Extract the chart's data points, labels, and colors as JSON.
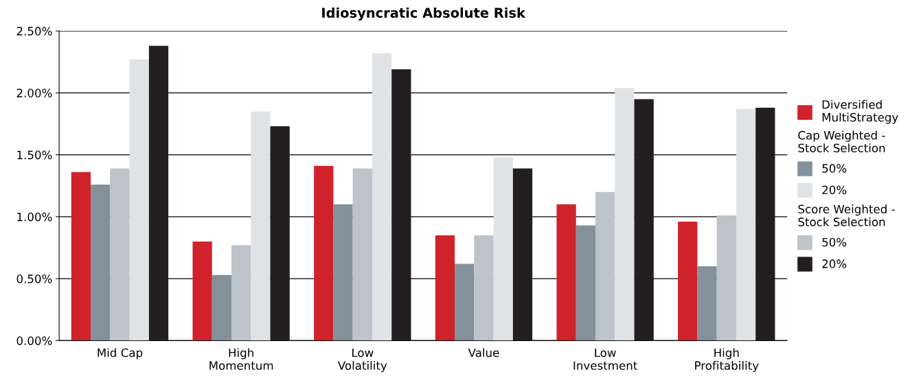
{
  "chart_data": {
    "type": "bar",
    "title": "Idiosyncratic Absolute Risk",
    "categories": [
      "Mid Cap",
      "High\nMomentum",
      "Low\nVolatility",
      "Value",
      "Low\nInvestment",
      "High\nProfitability"
    ],
    "series": [
      {
        "name": "Diversified\nMultiStrategy",
        "color": "#d0222b",
        "values": [
          1.36,
          0.8,
          1.41,
          0.85,
          1.1,
          0.96
        ]
      },
      {
        "name": "50%",
        "color": "#84909a",
        "values": [
          1.26,
          0.53,
          1.1,
          0.62,
          0.93,
          0.6
        ]
      },
      {
        "name": "20%",
        "color": "#e0e3e6",
        "values": [
          2.27,
          1.85,
          2.32,
          1.48,
          2.04,
          1.87
        ]
      },
      {
        "name": "50%",
        "color": "#bcc3ca",
        "values": [
          1.39,
          0.77,
          1.39,
          0.85,
          1.2,
          1.01
        ]
      },
      {
        "name": "20%",
        "color": "#231f20",
        "values": [
          2.38,
          1.73,
          2.19,
          1.39,
          1.95,
          1.88
        ]
      }
    ],
    "annotations": [
      "Cap Weighted -\nStock Selection",
      "Score Weighted -\nStock Selection"
    ],
    "ylim": [
      0,
      2.5
    ],
    "yticks": [
      {
        "value": 0,
        "label": "0.00%"
      },
      {
        "value": 0.5,
        "label": "0.50%"
      },
      {
        "value": 1.0,
        "label": "1.00%"
      },
      {
        "value": 1.5,
        "label": "1.50%"
      },
      {
        "value": 2.0,
        "label": "2.00%"
      },
      {
        "value": 2.5,
        "label": "2.50%"
      }
    ],
    "grid": "y",
    "legend": "right"
  }
}
